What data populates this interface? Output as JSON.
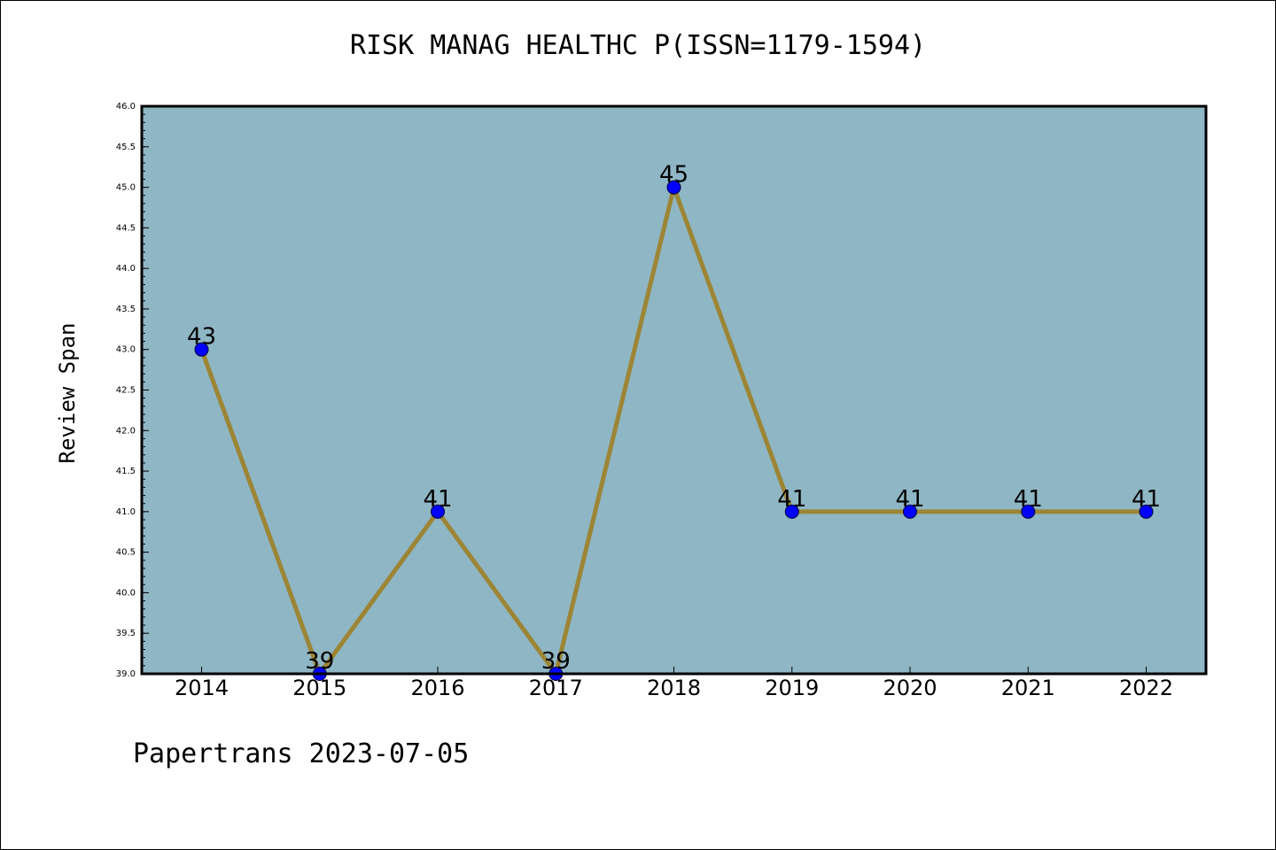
{
  "chart_data": {
    "type": "line",
    "title": "RISK MANAG HEALTHC P(ISSN=1179-1594)",
    "xlabel": "",
    "ylabel": "Review Span",
    "categories": [
      "2014",
      "2015",
      "2016",
      "2017",
      "2018",
      "2019",
      "2020",
      "2021",
      "2022"
    ],
    "series": [
      {
        "values": [
          43,
          39,
          41,
          39,
          45,
          41,
          41,
          41,
          41
        ]
      }
    ],
    "data_labels": [
      "43",
      "39",
      "41",
      "39",
      "45",
      "41",
      "41",
      "41",
      "41"
    ],
    "ylim": [
      39.0,
      46.0
    ],
    "yticks": [
      "39.0",
      "39.5",
      "40.0",
      "40.5",
      "41.0",
      "41.5",
      "42.0",
      "42.5",
      "43.0",
      "43.5",
      "44.0",
      "44.5",
      "45.0",
      "45.5",
      "46.0"
    ],
    "grid": false,
    "colors": {
      "plot_background": "#8fb6c4",
      "line": "#9c8535",
      "marker": "#0000ff"
    }
  },
  "footer": "Papertrans 2023-07-05"
}
